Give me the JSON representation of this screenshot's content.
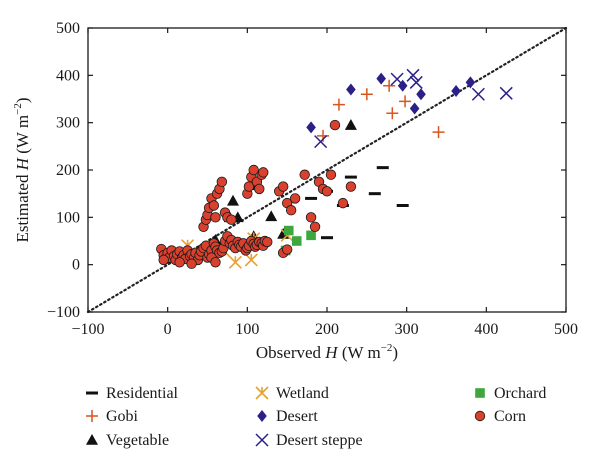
{
  "chart_data": {
    "type": "scatter",
    "xlabel": "Observed H (W m⁻²)",
    "ylabel": "Estimated H (W m⁻²)",
    "xlabel_parts": {
      "prefix": "Observed ",
      "var": "H",
      "unit": " (W m",
      "exp": "−2",
      "suffix": ")"
    },
    "ylabel_parts": {
      "prefix": "Estimated ",
      "var": "H",
      "unit": " (W m",
      "exp": "−2",
      "suffix": ")"
    },
    "xlim": [
      -100,
      500
    ],
    "ylim": [
      -100,
      500
    ],
    "xticks": [
      -100,
      0,
      100,
      200,
      300,
      400,
      500
    ],
    "yticks": [
      -100,
      0,
      100,
      200,
      300,
      400,
      500
    ],
    "xtick_labels": [
      "−100",
      "0",
      "100",
      "200",
      "300",
      "400",
      "500"
    ],
    "ytick_labels": [
      "−100",
      "0",
      "100",
      "200",
      "300",
      "400",
      "500"
    ],
    "grid": false,
    "reference_line": {
      "style": "dotted",
      "slope": 1,
      "intercept": 0
    },
    "legend_position": "below",
    "series": [
      {
        "name": "Residential",
        "marker": "dash",
        "color": "#111111",
        "points": [
          [
            200,
            155
          ],
          [
            180,
            140
          ],
          [
            230,
            185
          ],
          [
            220,
            125
          ],
          [
            270,
            205
          ],
          [
            260,
            150
          ],
          [
            295,
            125
          ],
          [
            200,
            57
          ]
        ]
      },
      {
        "name": "Gobi",
        "marker": "plus",
        "color": "#d9541e",
        "points": [
          [
            195,
            272
          ],
          [
            215,
            338
          ],
          [
            250,
            360
          ],
          [
            278,
            378
          ],
          [
            282,
            320
          ],
          [
            298,
            345
          ],
          [
            340,
            280
          ]
        ]
      },
      {
        "name": "Vegetable",
        "marker": "triangle",
        "color": "#111111",
        "points": [
          [
            40,
            28
          ],
          [
            60,
            52
          ],
          [
            78,
            100
          ],
          [
            82,
            135
          ],
          [
            88,
            100
          ],
          [
            110,
            168
          ],
          [
            130,
            102
          ],
          [
            145,
            65
          ],
          [
            230,
            295
          ],
          [
            108,
            60
          ]
        ]
      },
      {
        "name": "Wetland",
        "marker": "asterisk",
        "color": "#e8a030",
        "points": [
          [
            25,
            40
          ],
          [
            70,
            30
          ],
          [
            85,
            5
          ],
          [
            105,
            10
          ],
          [
            108,
            55
          ],
          [
            150,
            62
          ]
        ]
      },
      {
        "name": "Desert",
        "marker": "diamond",
        "color": "#2a2088",
        "points": [
          [
            180,
            290
          ],
          [
            230,
            370
          ],
          [
            268,
            393
          ],
          [
            295,
            378
          ],
          [
            310,
            330
          ],
          [
            318,
            360
          ],
          [
            362,
            367
          ],
          [
            380,
            385
          ]
        ]
      },
      {
        "name": "Desert steppe",
        "marker": "cross",
        "color": "#2a2088",
        "points": [
          [
            192,
            260
          ],
          [
            288,
            392
          ],
          [
            308,
            400
          ],
          [
            312,
            385
          ],
          [
            390,
            360
          ],
          [
            425,
            362
          ]
        ]
      },
      {
        "name": "Orchard",
        "marker": "square",
        "color": "#3da73d",
        "points": [
          [
            152,
            72
          ],
          [
            148,
            30
          ],
          [
            162,
            50
          ],
          [
            180,
            62
          ]
        ]
      },
      {
        "name": "Corn",
        "marker": "circle",
        "color": "#d9412e",
        "points": [
          [
            -8,
            33
          ],
          [
            -5,
            20
          ],
          [
            -3,
            12
          ],
          [
            0,
            25
          ],
          [
            2,
            15
          ],
          [
            5,
            30
          ],
          [
            8,
            18
          ],
          [
            10,
            10
          ],
          [
            12,
            22
          ],
          [
            15,
            28
          ],
          [
            18,
            15
          ],
          [
            20,
            20
          ],
          [
            22,
            12
          ],
          [
            25,
            30
          ],
          [
            28,
            18
          ],
          [
            30,
            22
          ],
          [
            33,
            14
          ],
          [
            35,
            25
          ],
          [
            38,
            10
          ],
          [
            40,
            20
          ],
          [
            42,
            28
          ],
          [
            45,
            35
          ],
          [
            48,
            40
          ],
          [
            50,
            15
          ],
          [
            52,
            22
          ],
          [
            55,
            30
          ],
          [
            58,
            45
          ],
          [
            60,
            38
          ],
          [
            62,
            30
          ],
          [
            65,
            25
          ],
          [
            68,
            28
          ],
          [
            70,
            35
          ],
          [
            72,
            50
          ],
          [
            75,
            60
          ],
          [
            78,
            45
          ],
          [
            80,
            52
          ],
          [
            82,
            40
          ],
          [
            85,
            35
          ],
          [
            88,
            48
          ],
          [
            90,
            42
          ],
          [
            92,
            38
          ],
          [
            95,
            45
          ],
          [
            98,
            30
          ],
          [
            100,
            35
          ],
          [
            102,
            40
          ],
          [
            105,
            50
          ],
          [
            108,
            44
          ],
          [
            110,
            38
          ],
          [
            112,
            42
          ],
          [
            115,
            48
          ],
          [
            118,
            45
          ],
          [
            120,
            40
          ],
          [
            122,
            50
          ],
          [
            125,
            48
          ],
          [
            45,
            80
          ],
          [
            48,
            95
          ],
          [
            50,
            105
          ],
          [
            52,
            120
          ],
          [
            55,
            140
          ],
          [
            58,
            125
          ],
          [
            60,
            100
          ],
          [
            62,
            150
          ],
          [
            65,
            160
          ],
          [
            68,
            175
          ],
          [
            72,
            110
          ],
          [
            75,
            100
          ],
          [
            80,
            95
          ],
          [
            100,
            150
          ],
          [
            102,
            165
          ],
          [
            105,
            185
          ],
          [
            108,
            200
          ],
          [
            112,
            175
          ],
          [
            115,
            160
          ],
          [
            118,
            190
          ],
          [
            120,
            195
          ],
          [
            140,
            155
          ],
          [
            145,
            165
          ],
          [
            150,
            130
          ],
          [
            155,
            115
          ],
          [
            160,
            140
          ],
          [
            172,
            190
          ],
          [
            180,
            100
          ],
          [
            185,
            80
          ],
          [
            190,
            175
          ],
          [
            195,
            160
          ],
          [
            200,
            155
          ],
          [
            205,
            190
          ],
          [
            210,
            295
          ],
          [
            220,
            130
          ],
          [
            230,
            165
          ],
          [
            -5,
            10
          ],
          [
            15,
            5
          ],
          [
            30,
            2
          ],
          [
            55,
            15
          ],
          [
            60,
            5
          ],
          [
            145,
            25
          ],
          [
            150,
            32
          ]
        ]
      }
    ]
  }
}
